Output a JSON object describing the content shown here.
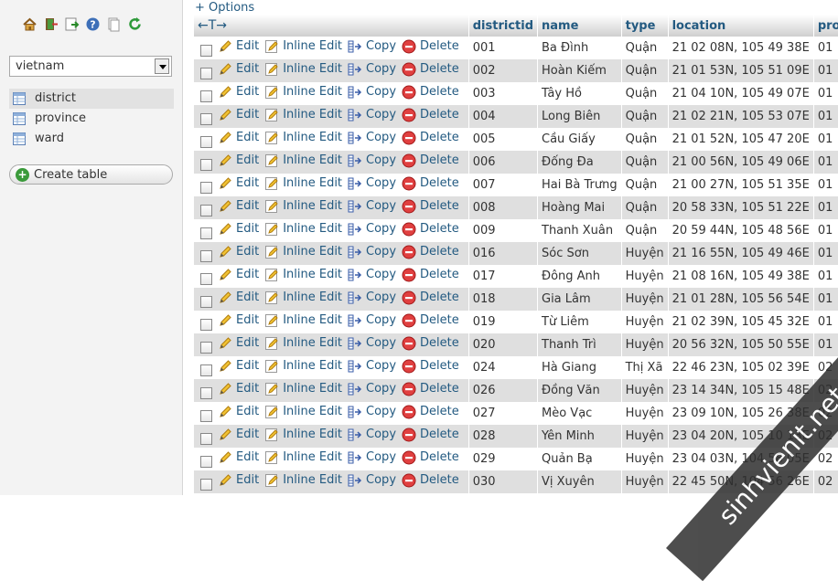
{
  "sidebar": {
    "nav_icons": [
      "home-icon",
      "exit-icon",
      "query-window-icon",
      "help-icon",
      "docs-icon",
      "reload-icon"
    ],
    "database": "vietnam",
    "tables": [
      {
        "label": "district",
        "active": true
      },
      {
        "label": "province",
        "active": false
      },
      {
        "label": "ward",
        "active": false
      }
    ],
    "create_table": "Create table"
  },
  "main": {
    "options_label": "+ Options",
    "sort_arrows": "←T→",
    "columns": [
      "districtid",
      "name",
      "type",
      "location",
      "provinceid"
    ],
    "action_labels": {
      "edit": "Edit",
      "inline_edit": "Inline Edit",
      "copy": "Copy",
      "delete": "Delete"
    },
    "rows": [
      {
        "districtid": "001",
        "name": "Ba Đình",
        "type": "Quận",
        "location": "21 02 08N, 105 49 38E",
        "provinceid": "01"
      },
      {
        "districtid": "002",
        "name": "Hoàn Kiếm",
        "type": "Quận",
        "location": "21 01 53N, 105 51 09E",
        "provinceid": "01"
      },
      {
        "districtid": "003",
        "name": "Tây Hồ",
        "type": "Quận",
        "location": "21 04 10N, 105 49 07E",
        "provinceid": "01"
      },
      {
        "districtid": "004",
        "name": "Long Biên",
        "type": "Quận",
        "location": "21 02 21N, 105 53 07E",
        "provinceid": "01"
      },
      {
        "districtid": "005",
        "name": "Cầu Giấy",
        "type": "Quận",
        "location": "21 01 52N, 105 47 20E",
        "provinceid": "01"
      },
      {
        "districtid": "006",
        "name": "Đống Đa",
        "type": "Quận",
        "location": "21 00 56N, 105 49 06E",
        "provinceid": "01"
      },
      {
        "districtid": "007",
        "name": "Hai Bà Trưng",
        "type": "Quận",
        "location": "21 00 27N, 105 51 35E",
        "provinceid": "01"
      },
      {
        "districtid": "008",
        "name": "Hoàng Mai",
        "type": "Quận",
        "location": "20 58 33N, 105 51 22E",
        "provinceid": "01"
      },
      {
        "districtid": "009",
        "name": "Thanh Xuân",
        "type": "Quận",
        "location": "20 59 44N, 105 48 56E",
        "provinceid": "01"
      },
      {
        "districtid": "016",
        "name": "Sóc Sơn",
        "type": "Huyện",
        "location": "21 16 55N, 105 49 46E",
        "provinceid": "01"
      },
      {
        "districtid": "017",
        "name": "Đông Anh",
        "type": "Huyện",
        "location": "21 08 16N, 105 49 38E",
        "provinceid": "01"
      },
      {
        "districtid": "018",
        "name": "Gia Lâm",
        "type": "Huyện",
        "location": "21 01 28N, 105 56 54E",
        "provinceid": "01"
      },
      {
        "districtid": "019",
        "name": "Từ Liêm",
        "type": "Huyện",
        "location": "21 02 39N, 105 45 32E",
        "provinceid": "01"
      },
      {
        "districtid": "020",
        "name": "Thanh Trì",
        "type": "Huyện",
        "location": "20 56 32N, 105 50 55E",
        "provinceid": "01"
      },
      {
        "districtid": "024",
        "name": "Hà Giang",
        "type": "Thị Xã",
        "location": "22 46 23N, 105 02 39E",
        "provinceid": "02"
      },
      {
        "districtid": "026",
        "name": "Đồng Văn",
        "type": "Huyện",
        "location": "23 14 34N, 105 15 48E",
        "provinceid": "02"
      },
      {
        "districtid": "027",
        "name": "Mèo Vạc",
        "type": "Huyện",
        "location": "23 09 10N, 105 26 38E",
        "provinceid": "02"
      },
      {
        "districtid": "028",
        "name": "Yên Minh",
        "type": "Huyện",
        "location": "23 04 20N, 105 10 13E",
        "provinceid": "02"
      },
      {
        "districtid": "029",
        "name": "Quản Bạ",
        "type": "Huyện",
        "location": "23 04 03N, 104 58 05E",
        "provinceid": "02"
      },
      {
        "districtid": "030",
        "name": "Vị Xuyên",
        "type": "Huyện",
        "location": "22 45 50N, 104 56 26E",
        "provinceid": "02"
      }
    ]
  },
  "watermark": "sinhvienit.net"
}
